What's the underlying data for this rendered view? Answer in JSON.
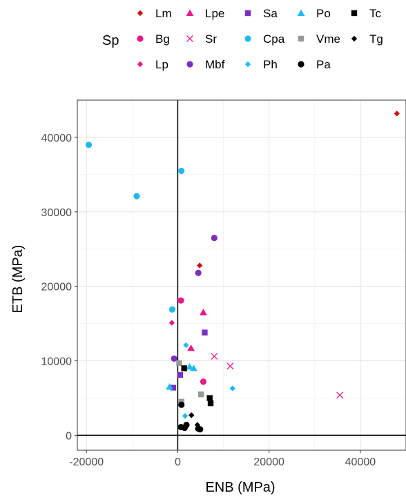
{
  "chart_data": {
    "type": "scatter",
    "xlabel": "ENB (MPa)",
    "ylabel": "ETB (MPa)",
    "xlim": [
      -22000,
      50000
    ],
    "ylim": [
      -2000,
      45000
    ],
    "x_ticks": [
      -20000,
      0,
      20000,
      40000
    ],
    "y_ticks": [
      0,
      10000,
      20000,
      30000,
      40000
    ],
    "grid": true,
    "reference_lines": {
      "x": 0,
      "y": 0
    },
    "legend": {
      "title": "Sp",
      "position": "top",
      "columns": [
        [
          "Lm",
          "Bg",
          "Lp"
        ],
        [
          "Lpe",
          "Sr",
          "Mbf"
        ],
        [
          "Sa",
          "Cpa",
          "Ph"
        ],
        [
          "Po",
          "Vme",
          "Pa"
        ],
        [
          "Tc",
          "Tg"
        ]
      ]
    },
    "series": [
      {
        "name": "Lm",
        "shape": "diamond",
        "color": "#cc1111",
        "points": [
          [
            4800,
            22800
          ],
          [
            48000,
            43200
          ]
        ]
      },
      {
        "name": "Bg",
        "shape": "circle",
        "color": "#e8198b",
        "points": [
          [
            700,
            18100
          ],
          [
            5600,
            7200
          ]
        ]
      },
      {
        "name": "Lp",
        "shape": "diamond",
        "color": "#e8198b",
        "points": [
          [
            -1300,
            15100
          ]
        ]
      },
      {
        "name": "Lpe",
        "shape": "triangle",
        "color": "#e8198b",
        "points": [
          [
            5600,
            16500
          ],
          [
            2900,
            11700
          ]
        ]
      },
      {
        "name": "Sr",
        "shape": "x",
        "color": "#e8198b",
        "points": [
          [
            8000,
            10600
          ],
          [
            11500,
            9300
          ],
          [
            35500,
            5400
          ]
        ]
      },
      {
        "name": "Mbf",
        "shape": "circle",
        "color": "#7b2fbe",
        "points": [
          [
            8000,
            26500
          ],
          [
            4500,
            21800
          ],
          [
            -800,
            10300
          ]
        ]
      },
      {
        "name": "Sa",
        "shape": "square",
        "color": "#7b2fbe",
        "points": [
          [
            5900,
            13800
          ],
          [
            500,
            8100
          ],
          [
            -1000,
            6400
          ]
        ]
      },
      {
        "name": "Cpa",
        "shape": "circle",
        "color": "#1fbbee",
        "points": [
          [
            -19500,
            39000
          ],
          [
            -9000,
            32100
          ],
          [
            800,
            35500
          ],
          [
            -1200,
            16900
          ]
        ]
      },
      {
        "name": "Ph",
        "shape": "diamond",
        "color": "#1fbbee",
        "points": [
          [
            1800,
            12100
          ],
          [
            12000,
            6300
          ],
          [
            1600,
            2600
          ]
        ]
      },
      {
        "name": "Po",
        "shape": "triangle",
        "color": "#1fbbee",
        "points": [
          [
            2600,
            9200
          ],
          [
            3500,
            9000
          ],
          [
            -1800,
            6500
          ]
        ]
      },
      {
        "name": "Vme",
        "shape": "square",
        "color": "#999999",
        "points": [
          [
            300,
            9700
          ],
          [
            5100,
            5500
          ],
          [
            800,
            4500
          ]
        ]
      },
      {
        "name": "Pa",
        "shape": "circle",
        "color": "#000000",
        "points": [
          [
            800,
            4100
          ],
          [
            700,
            1100
          ],
          [
            1500,
            1000
          ],
          [
            1900,
            1400
          ],
          [
            4500,
            900
          ],
          [
            4900,
            800
          ]
        ]
      },
      {
        "name": "Tc",
        "shape": "square",
        "color": "#000000",
        "points": [
          [
            1400,
            9000
          ],
          [
            7000,
            5000
          ],
          [
            7200,
            4300
          ]
        ]
      },
      {
        "name": "Tg",
        "shape": "diamond",
        "color": "#000000",
        "points": [
          [
            3000,
            2700
          ],
          [
            4300,
            1400
          ]
        ]
      }
    ]
  }
}
